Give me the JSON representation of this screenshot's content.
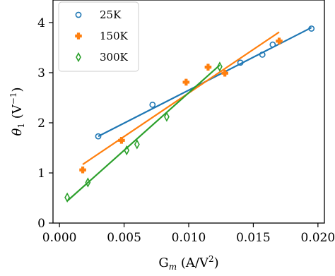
{
  "chart_data": {
    "type": "scatter",
    "xlabel": "G_m (A/V²)",
    "ylabel": "θ₁ (V⁻¹)",
    "xlabel_parts": {
      "main": "G",
      "sub": "m",
      "rest": " (A/V",
      "sup": "2",
      "end": ")"
    },
    "ylabel_parts": {
      "main": "θ",
      "sub": "1",
      "rest": " (V",
      "sup": "−1",
      "end": ")"
    },
    "xlim": [
      -0.0005,
      0.0205
    ],
    "ylim": [
      0,
      4.45
    ],
    "xticks": [
      0.0,
      0.005,
      0.01,
      0.015,
      0.02
    ],
    "xtick_labels": [
      "0.000",
      "0.005",
      "0.010",
      "0.015",
      "0.020"
    ],
    "yticks": [
      0,
      1,
      2,
      3,
      4
    ],
    "ytick_labels": [
      "0",
      "1",
      "2",
      "3",
      "4"
    ],
    "grid": false,
    "legend_position": "top-left",
    "series": [
      {
        "name": "25K",
        "color": "#1f77b4",
        "marker": "circle",
        "points": [
          [
            0.003,
            1.73
          ],
          [
            0.0072,
            2.36
          ],
          [
            0.014,
            3.2
          ],
          [
            0.0157,
            3.36
          ],
          [
            0.0165,
            3.56
          ],
          [
            0.0195,
            3.88
          ]
        ],
        "fit": [
          [
            0.003,
            1.73
          ],
          [
            0.0195,
            3.9
          ]
        ]
      },
      {
        "name": "150K",
        "color": "#ff7f0e",
        "marker": "plus",
        "points": [
          [
            0.0018,
            1.06
          ],
          [
            0.0048,
            1.65
          ],
          [
            0.0098,
            2.81
          ],
          [
            0.0115,
            3.11
          ],
          [
            0.0128,
            2.99
          ],
          [
            0.017,
            3.63
          ]
        ],
        "fit": [
          [
            0.0018,
            1.17
          ],
          [
            0.017,
            3.81
          ]
        ]
      },
      {
        "name": "300K",
        "color": "#2ca02c",
        "marker": "thin_diamond",
        "points": [
          [
            0.0006,
            0.51
          ],
          [
            0.0022,
            0.81
          ],
          [
            0.0052,
            1.45
          ],
          [
            0.006,
            1.57
          ],
          [
            0.0083,
            2.12
          ],
          [
            0.0124,
            3.12
          ]
        ],
        "fit": [
          [
            0.0006,
            0.44
          ],
          [
            0.0124,
            3.15
          ]
        ]
      }
    ]
  }
}
